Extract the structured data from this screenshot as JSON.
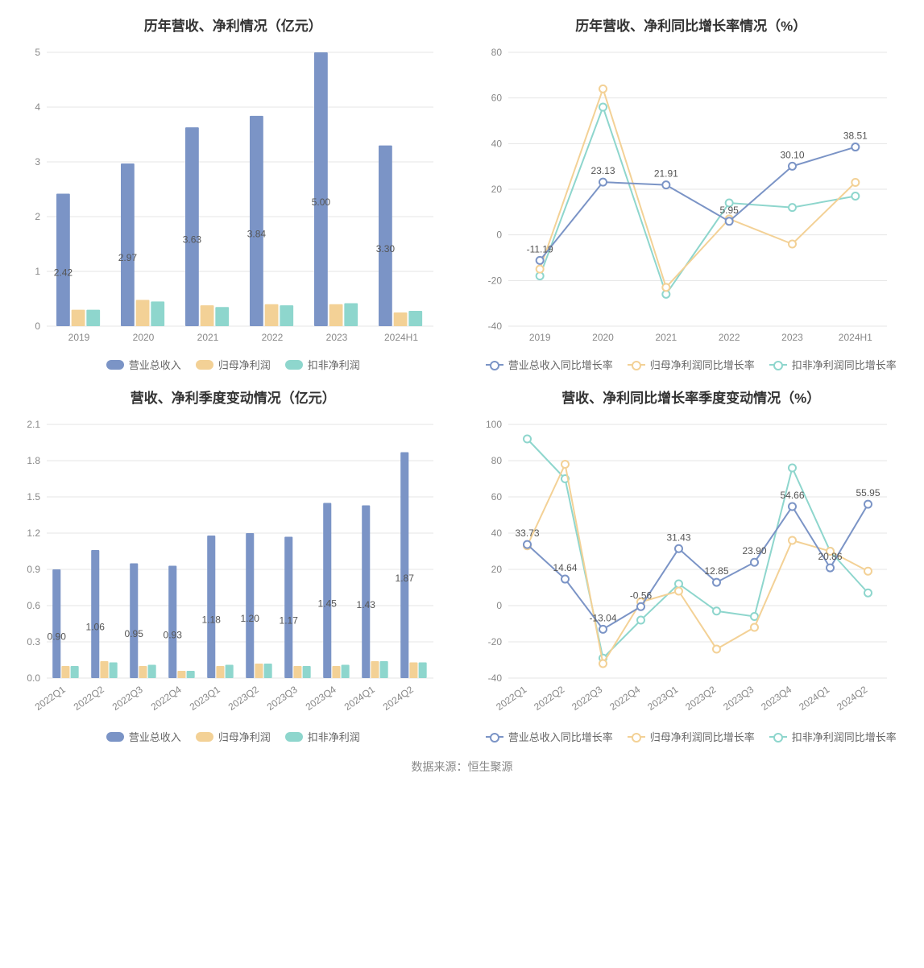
{
  "footer": "数据来源：恒生聚源",
  "colors": {
    "revenue": "#7b94c6",
    "profit1": "#f3d196",
    "profit2": "#8ed6cd",
    "grid": "#e5e5e5",
    "axis": "#cccccc",
    "tick": "#888888"
  },
  "chart1": {
    "title": "历年营收、净利情况（亿元）",
    "type": "bar",
    "categories": [
      "2019",
      "2020",
      "2021",
      "2022",
      "2023",
      "2024H1"
    ],
    "ylim": [
      0,
      5
    ],
    "ytick_step": 1,
    "series": [
      {
        "name": "营业总收入",
        "color": "#7b94c6",
        "values": [
          2.42,
          2.97,
          3.63,
          3.84,
          5.0,
          3.3
        ],
        "show_labels": true
      },
      {
        "name": "归母净利润",
        "color": "#f3d196",
        "values": [
          0.3,
          0.48,
          0.38,
          0.4,
          0.4,
          0.25
        ],
        "show_labels": false
      },
      {
        "name": "扣非净利润",
        "color": "#8ed6cd",
        "values": [
          0.3,
          0.45,
          0.35,
          0.38,
          0.42,
          0.28
        ],
        "show_labels": false
      }
    ]
  },
  "chart2": {
    "title": "历年营收、净利同比增长率情况（%）",
    "type": "line",
    "categories": [
      "2019",
      "2020",
      "2021",
      "2022",
      "2023",
      "2024H1"
    ],
    "ylim": [
      -40,
      80
    ],
    "ytick_step": 20,
    "series": [
      {
        "name": "营业总收入同比增长率",
        "color": "#7b94c6",
        "values": [
          -11.19,
          23.13,
          21.91,
          5.95,
          30.1,
          38.51
        ],
        "show_labels": true
      },
      {
        "name": "归母净利润同比增长率",
        "color": "#f3d196",
        "values": [
          -15,
          64,
          -23,
          7,
          -4,
          23
        ],
        "show_labels": false
      },
      {
        "name": "扣非净利润同比增长率",
        "color": "#8ed6cd",
        "values": [
          -18,
          56,
          -26,
          14,
          12,
          17
        ],
        "show_labels": false
      }
    ]
  },
  "chart3": {
    "title": "营收、净利季度变动情况（亿元）",
    "type": "bar",
    "categories": [
      "2022Q1",
      "2022Q2",
      "2022Q3",
      "2022Q4",
      "2023Q1",
      "2023Q2",
      "2023Q3",
      "2023Q4",
      "2024Q1",
      "2024Q2"
    ],
    "ylim": [
      0,
      2.1
    ],
    "ytick_step": 0.3,
    "rotate_x": true,
    "series": [
      {
        "name": "营业总收入",
        "color": "#7b94c6",
        "values": [
          0.9,
          1.06,
          0.95,
          0.93,
          1.18,
          1.2,
          1.17,
          1.45,
          1.43,
          1.87
        ],
        "show_labels": true
      },
      {
        "name": "归母净利润",
        "color": "#f3d196",
        "values": [
          0.1,
          0.14,
          0.1,
          0.06,
          0.1,
          0.12,
          0.1,
          0.1,
          0.14,
          0.13
        ],
        "show_labels": false
      },
      {
        "name": "扣非净利润",
        "color": "#8ed6cd",
        "values": [
          0.1,
          0.13,
          0.11,
          0.06,
          0.11,
          0.12,
          0.1,
          0.11,
          0.14,
          0.13
        ],
        "show_labels": false
      }
    ]
  },
  "chart4": {
    "title": "营收、净利同比增长率季度变动情况（%）",
    "type": "line",
    "categories": [
      "2022Q1",
      "2022Q2",
      "2022Q3",
      "2022Q4",
      "2023Q1",
      "2023Q2",
      "2023Q3",
      "2023Q4",
      "2024Q1",
      "2024Q2"
    ],
    "ylim": [
      -40,
      100
    ],
    "ytick_step": 20,
    "rotate_x": true,
    "series": [
      {
        "name": "营业总收入同比增长率",
        "color": "#7b94c6",
        "values": [
          33.73,
          14.64,
          -13.04,
          -0.56,
          31.43,
          12.85,
          23.9,
          54.66,
          20.86,
          55.95
        ],
        "show_labels": true
      },
      {
        "name": "归母净利润同比增长率",
        "color": "#f3d196",
        "values": [
          33,
          78,
          -32,
          2,
          8,
          -24,
          -12,
          36,
          30,
          19
        ],
        "show_labels": false
      },
      {
        "name": "扣非净利润同比增长率",
        "color": "#8ed6cd",
        "values": [
          92,
          70,
          -29,
          -8,
          12,
          -3,
          -6,
          76,
          30,
          7
        ],
        "show_labels": false
      }
    ]
  }
}
